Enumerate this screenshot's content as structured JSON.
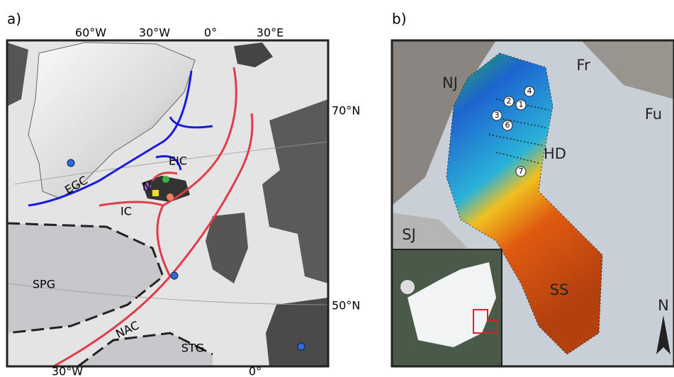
{
  "panel_a": {
    "label": "a)",
    "longitudes_top": [
      "60°W",
      "30°W",
      "0°",
      "30°E"
    ],
    "longitudes_bottom": [
      "30°W",
      "0°"
    ],
    "latitudes": [
      "70°N",
      "50°N"
    ],
    "currents": [
      "EGC",
      "EIC",
      "N",
      "IC",
      "NAC"
    ],
    "gyres": [
      "SPG",
      "STG"
    ]
  },
  "panel_b": {
    "label": "b)",
    "regions": [
      "NJ",
      "Fr",
      "Fu",
      "HD",
      "SJ",
      "SS"
    ],
    "sites": [
      "4",
      "2",
      "1",
      "3",
      "6",
      "7"
    ],
    "north": "N"
  }
}
